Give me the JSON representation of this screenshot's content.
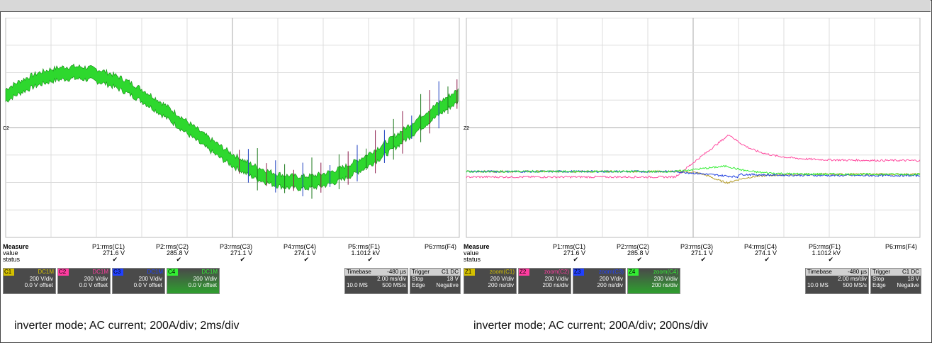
{
  "chart_data": [
    {
      "type": "line",
      "title": "",
      "caption": "inverter mode; AC current; 200A/div; 2ms/div",
      "xlabel": "",
      "ylabel": "",
      "xlim": [
        -10,
        10
      ],
      "ylim": [
        -800,
        800
      ],
      "grid": true,
      "series": [
        {
          "channel": "C4",
          "color": "#22dd22",
          "kind": "sine",
          "amplitude": 400,
          "period_ms": 20,
          "phase_deg": 216
        }
      ],
      "spikes": {
        "start_ms": 0.3,
        "spacing_ms": 0.4,
        "colors": [
          "#8b1a4a",
          "#2040c0",
          "#1e7a1e"
        ]
      }
    },
    {
      "type": "line",
      "title": "",
      "caption": "inverter mode; AC current; 200A/div; 200ns/div",
      "xlabel": "",
      "ylabel": "",
      "xlim": [
        -1000,
        1000
      ],
      "ylim": [
        -800,
        800
      ],
      "grid": true,
      "series": [
        {
          "channel": "C1",
          "color": "#b8a030",
          "start": -320,
          "dip": -400
        },
        {
          "channel": "C2",
          "color": "#ff4ca0",
          "start": -360,
          "peak": -50,
          "settle": -240
        },
        {
          "channel": "C3",
          "color": "#2040e0",
          "start": -320,
          "dip": -360
        },
        {
          "channel": "C4",
          "color": "#33ee33",
          "start": -320,
          "bump": -280
        }
      ]
    }
  ],
  "measure": {
    "head": "Measure",
    "rows": [
      "value",
      "status"
    ],
    "params": [
      "P1:rms(C1)",
      "P2:rms(C2)",
      "P3:rms(C3)",
      "P4:rms(C4)",
      "P5:rms(F1)",
      "P6:rms(F4)"
    ],
    "values": [
      "271.6 V",
      "285.8 V",
      "271.1 V",
      "274.1 V",
      "1.1012 kV",
      ""
    ],
    "status": [
      "✔",
      "✔",
      "✔",
      "✔",
      "✔",
      ""
    ]
  },
  "left_channels": [
    {
      "tag": "C1",
      "coupling": "DC1M",
      "line1": "200 V/div",
      "line2": "0.0 V offset",
      "color": "#d4c000"
    },
    {
      "tag": "C2",
      "coupling": "DC1M",
      "line1": "200 V/div",
      "line2": "0.0 V offset",
      "color": "#ff3ca0"
    },
    {
      "tag": "C3",
      "coupling": "DC1M",
      "line1": "200 V/div",
      "line2": "0.0 V offset",
      "color": "#2040ff"
    },
    {
      "tag": "C4",
      "coupling": "DC1M",
      "line1": "200 V/div",
      "line2": "0.0 V offset",
      "color": "#33ee33"
    }
  ],
  "right_channels": [
    {
      "tag": "Z1",
      "coupling": "zoom(C1)",
      "line1": "200 V/div",
      "line2": "200 ns/div",
      "color": "#d4c000"
    },
    {
      "tag": "Z2",
      "coupling": "zoom(C2)",
      "line1": "200 V/div",
      "line2": "200 ns/div",
      "color": "#ff3ca0"
    },
    {
      "tag": "Z3",
      "coupling": "zoom(C3)",
      "line1": "200 V/div",
      "line2": "200 ns/div",
      "color": "#2040ff"
    },
    {
      "tag": "Z4",
      "coupling": "zoom(C4)",
      "line1": "200 V/div",
      "line2": "200 ns/div",
      "color": "#33ee33"
    }
  ],
  "timebase": {
    "label": "Timebase",
    "delay": "-480 µs",
    "tdiv": "2.00 ms/div",
    "samples": "10.0 MS",
    "rate": "500 MS/s"
  },
  "trigger": {
    "label": "Trigger",
    "src": "C1 DC",
    "mode": "Stop",
    "level": "18 V",
    "type": "Edge",
    "slope": "Negative"
  },
  "marker_left": "C2",
  "marker_right": "Z2"
}
